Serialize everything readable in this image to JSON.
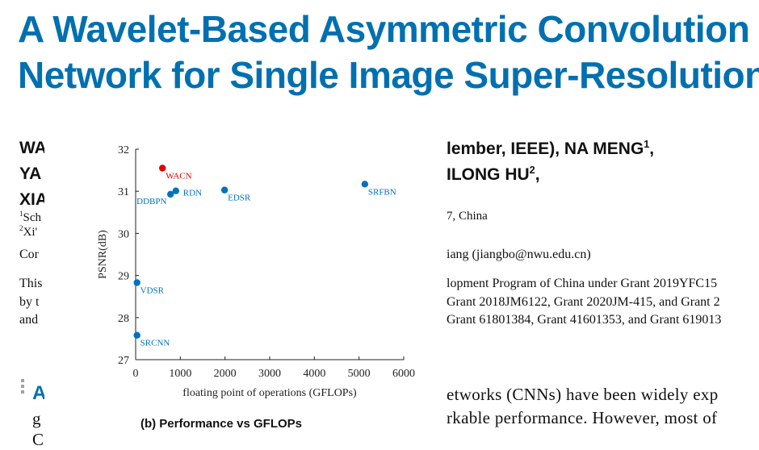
{
  "paper": {
    "title_line1": "A Wavelet-Based Asymmetric Convolution",
    "title_line2": "Network for Single Image Super-Resolution",
    "author_left": [
      "WA",
      "YA",
      "XIA"
    ],
    "author_right_1a": "lember, IEEE), NA MENG",
    "author_right_1sup": "1",
    "author_right_1b": ",",
    "author_right_2a": "ILONG HU",
    "author_right_2sup": "2",
    "author_right_2b": ",",
    "affil_left_1": "Sch",
    "affil_left_2": "Xi'",
    "affil_sup_1": "1",
    "affil_sup_2": "2",
    "affil_right": "7, China",
    "corr_left": "Cor",
    "corr_right": "iang (jiangbo@nwu.edu.cn)",
    "fund_left": [
      "This",
      "by t",
      "and"
    ],
    "fund_right": [
      "lopment Program of China under Grant 2019YFC15",
      "Grant 2018JM6122, Grant 2020JM-415, and Grant 2",
      "Grant 61801384, Grant 41601353, and Grant 619013"
    ],
    "section_letter": "A",
    "abs_left": [
      "g",
      "C"
    ],
    "abs_right": [
      "etworks (CNNs) have been widely exp",
      "rkable performance. However, most of"
    ],
    "figure_caption": "(b) Performance vs GFLOPs"
  },
  "chart_data": {
    "type": "scatter",
    "title": "",
    "xlabel": "floating point of operations (GFLOPs)",
    "ylabel": "PSNR(dB)",
    "xlim": [
      0,
      6000
    ],
    "ylim": [
      27,
      32
    ],
    "xticks": [
      0,
      1000,
      2000,
      3000,
      4000,
      5000,
      6000
    ],
    "yticks": [
      27,
      28,
      29,
      30,
      31,
      32
    ],
    "grid": false,
    "points": [
      {
        "name": "WACN",
        "x": 600,
        "y": 31.55,
        "color": "#e00000",
        "label_pos": "below-right"
      },
      {
        "name": "DDBPN",
        "x": 780,
        "y": 30.93,
        "color": "#0072bd",
        "label_pos": "below-left"
      },
      {
        "name": "RDN",
        "x": 900,
        "y": 31.01,
        "color": "#0072bd",
        "label_pos": "right"
      },
      {
        "name": "EDSR",
        "x": 1990,
        "y": 31.03,
        "color": "#0072bd",
        "label_pos": "below-right"
      },
      {
        "name": "SRFBN",
        "x": 5130,
        "y": 31.17,
        "color": "#0072bd",
        "label_pos": "below-right"
      },
      {
        "name": "VDSR",
        "x": 30,
        "y": 28.83,
        "color": "#0072bd",
        "label_pos": "below-right"
      },
      {
        "name": "SRCNN",
        "x": 30,
        "y": 27.58,
        "color": "#0072bd",
        "label_pos": "below-right"
      }
    ]
  }
}
